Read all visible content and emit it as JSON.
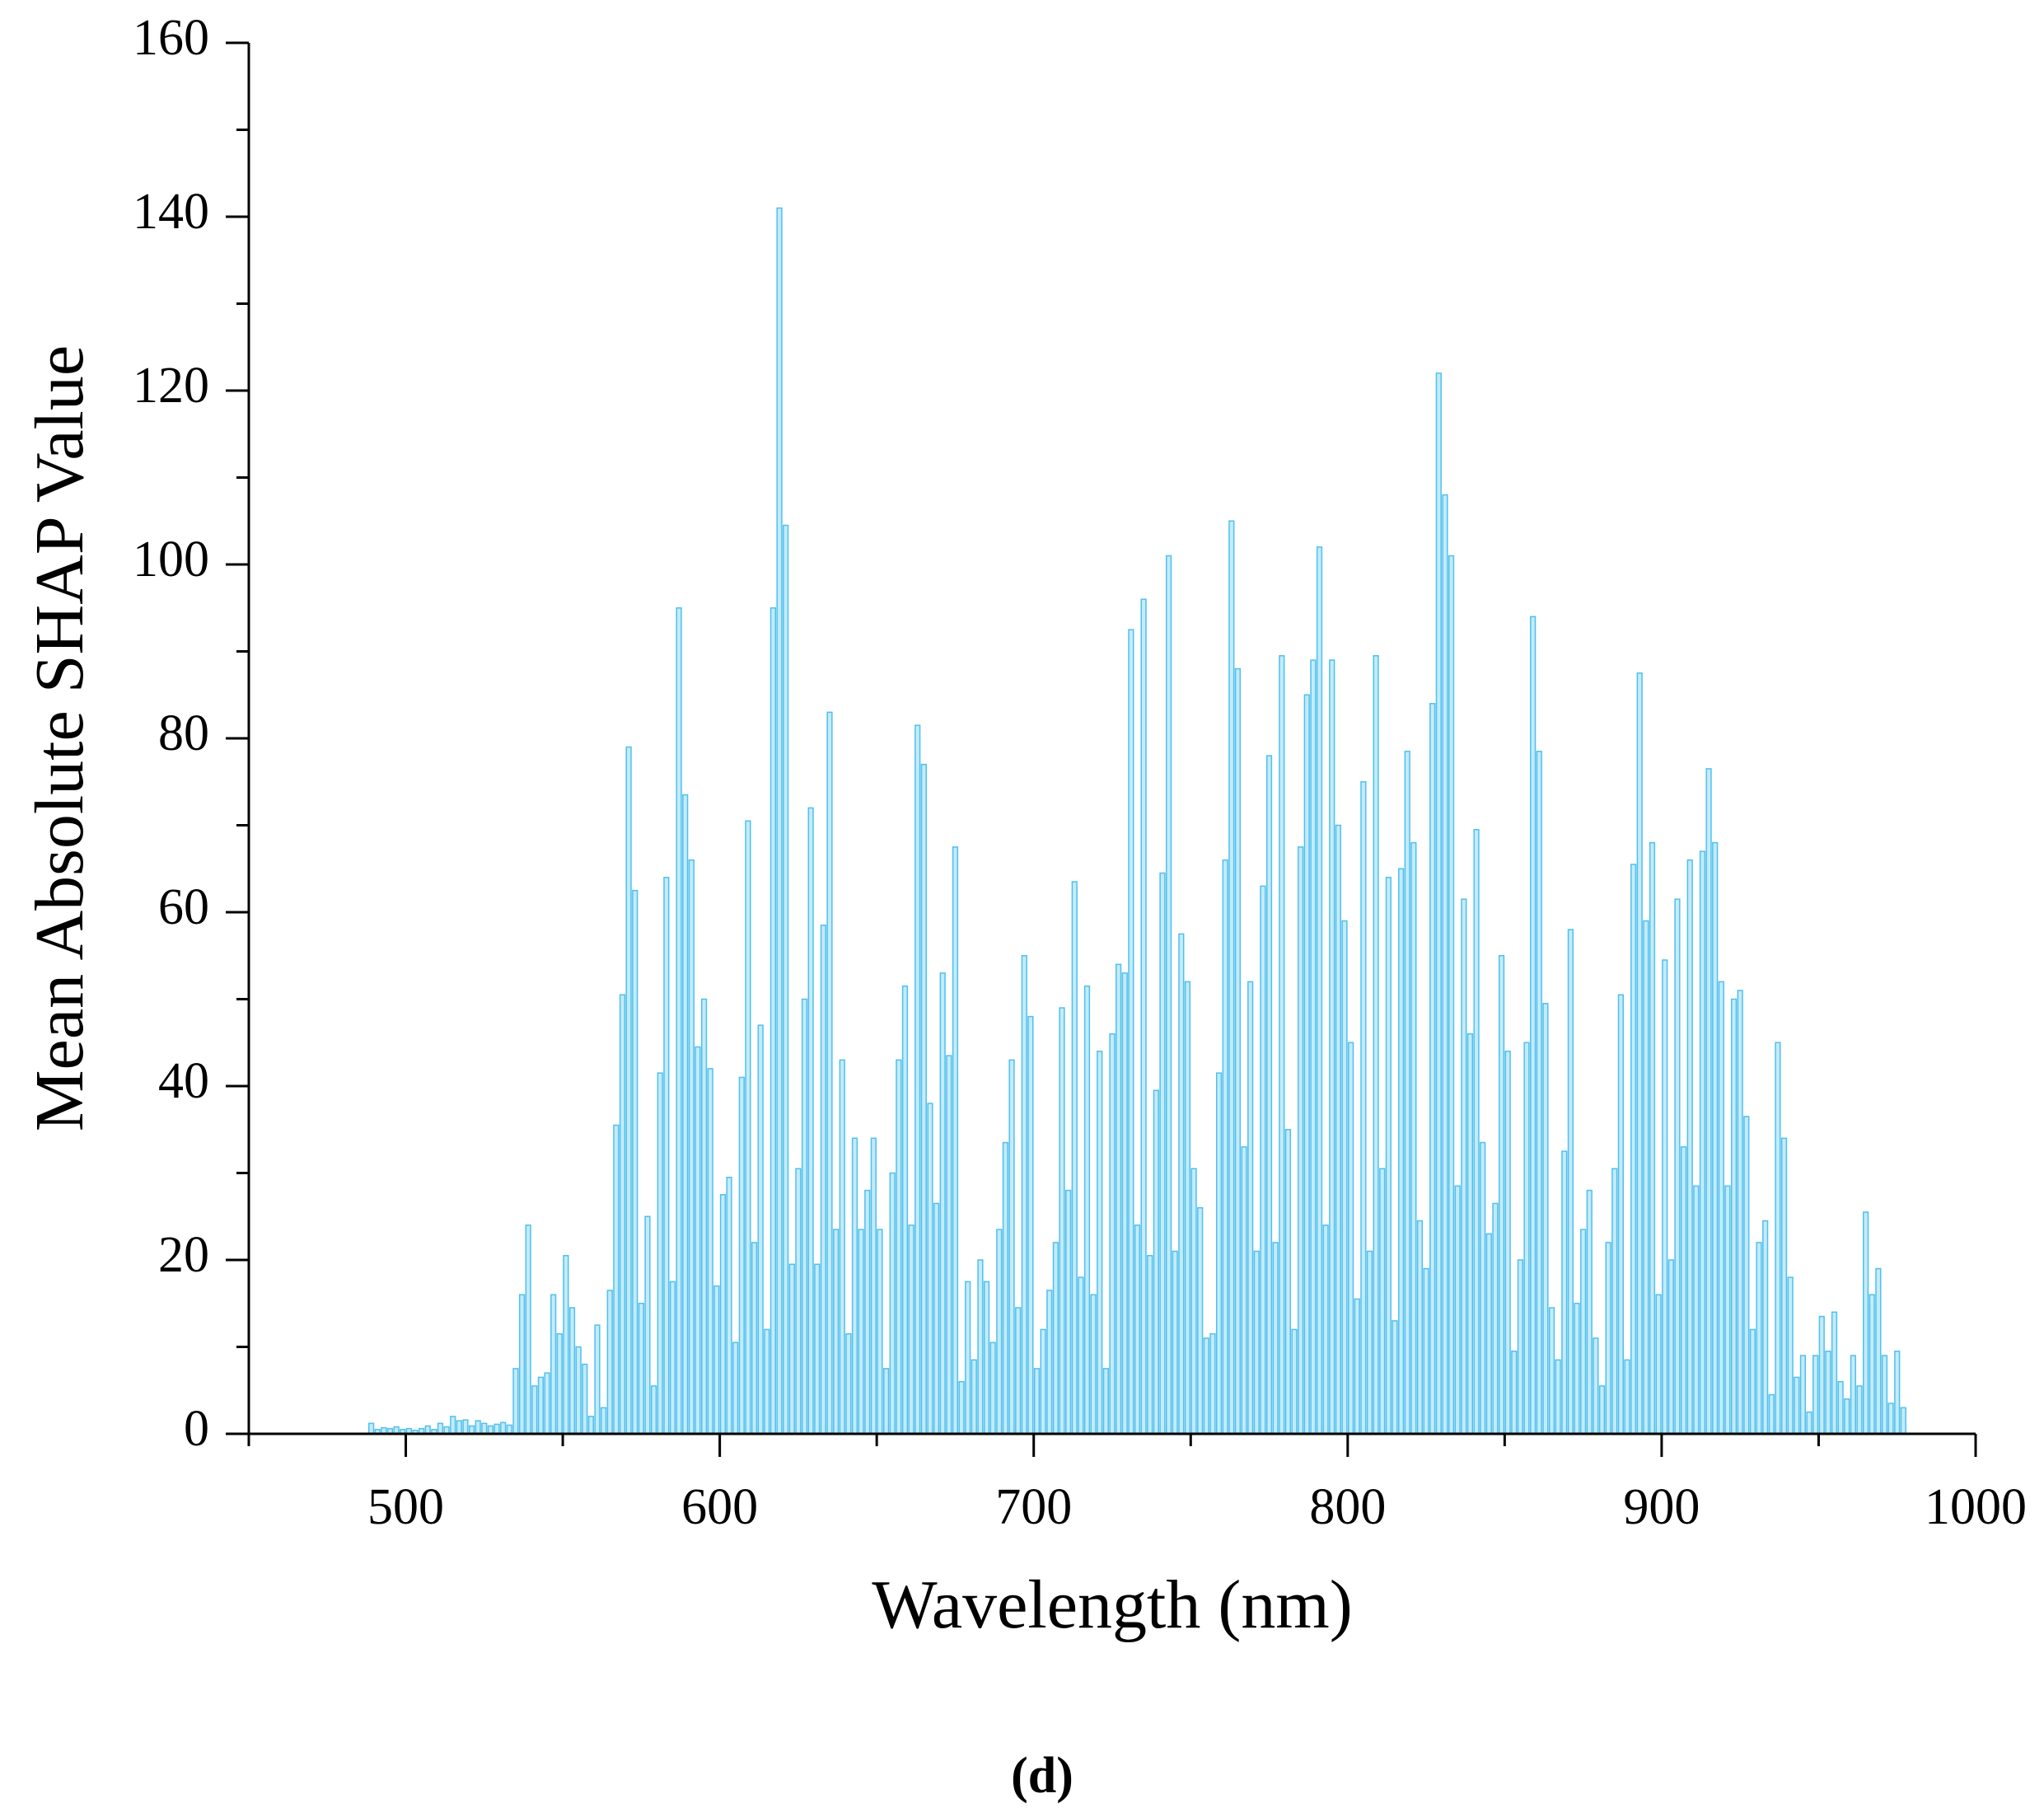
{
  "chart_data": {
    "type": "bar",
    "caption": "(d)",
    "xlabel": "Wavelength (nm)",
    "ylabel": "Mean Absolute SHAP Value",
    "color": "#c4ebfa",
    "edgecolor": "#4fc0ee",
    "xlim": [
      450,
      1000
    ],
    "xticks": [
      500,
      600,
      700,
      800,
      900,
      1000
    ],
    "ylim": [
      0,
      160
    ],
    "yticks": [
      0,
      20,
      40,
      60,
      80,
      100,
      120,
      140,
      160
    ],
    "x": [
      489,
      491,
      493,
      495,
      497,
      499,
      501,
      503,
      505,
      507,
      509,
      511,
      513,
      515,
      517,
      519,
      521,
      523,
      525,
      527,
      529,
      531,
      533,
      535,
      537,
      539,
      541,
      543,
      545,
      547,
      549,
      551,
      553,
      555,
      557,
      559,
      561,
      563,
      565,
      567,
      569,
      571,
      573,
      575,
      577,
      579,
      581,
      583,
      585,
      587,
      589,
      591,
      593,
      595,
      597,
      599,
      601,
      603,
      605,
      607,
      609,
      611,
      613,
      615,
      617,
      619,
      621,
      623,
      625,
      627,
      629,
      631,
      633,
      635,
      637,
      639,
      641,
      643,
      645,
      647,
      649,
      651,
      653,
      655,
      657,
      659,
      661,
      663,
      665,
      667,
      669,
      671,
      673,
      675,
      677,
      679,
      681,
      683,
      685,
      687,
      689,
      691,
      693,
      695,
      697,
      699,
      701,
      703,
      705,
      707,
      709,
      711,
      713,
      715,
      717,
      719,
      721,
      723,
      725,
      727,
      729,
      731,
      733,
      735,
      737,
      739,
      741,
      743,
      745,
      747,
      749,
      751,
      753,
      755,
      757,
      759,
      761,
      763,
      765,
      767,
      769,
      771,
      773,
      775,
      777,
      779,
      781,
      783,
      785,
      787,
      789,
      791,
      793,
      795,
      797,
      799,
      801,
      803,
      805,
      807,
      809,
      811,
      813,
      815,
      817,
      819,
      821,
      823,
      825,
      827,
      829,
      831,
      833,
      835,
      837,
      839,
      841,
      843,
      845,
      847,
      849,
      851,
      853,
      855,
      857,
      859,
      861,
      863,
      865,
      867,
      869,
      871,
      873,
      875,
      877,
      879,
      881,
      883,
      885,
      887,
      889,
      891,
      893,
      895,
      897,
      899,
      901,
      903,
      905,
      907,
      909,
      911,
      913,
      915,
      917,
      919,
      921,
      923,
      925,
      927,
      929,
      931,
      933,
      935,
      937,
      939,
      941,
      943,
      945,
      947,
      949,
      951,
      953,
      955,
      957,
      959,
      961,
      963,
      965,
      967,
      969,
      971,
      973,
      975,
      977
    ],
    "values": [
      1.2,
      0.5,
      0.7,
      0.6,
      0.8,
      0.5,
      0.6,
      0.4,
      0.6,
      0.9,
      0.5,
      1.2,
      0.8,
      2.0,
      1.5,
      1.6,
      0.9,
      1.5,
      1.2,
      0.9,
      1.1,
      1.3,
      1.0,
      7.5,
      16,
      24,
      5.5,
      6.5,
      7,
      16,
      11.5,
      20.5,
      14.5,
      10,
      8,
      2,
      12.5,
      3,
      16.5,
      35.5,
      50.5,
      79,
      62.5,
      15,
      25,
      5.5,
      41.5,
      64,
      17.5,
      95,
      73.5,
      66,
      44.5,
      50,
      42,
      17,
      27.5,
      29.5,
      10.5,
      41,
      70.5,
      22,
      47,
      12,
      95,
      141,
      104.5,
      19.5,
      30.5,
      50,
      72,
      19.5,
      58.5,
      83,
      23.5,
      43,
      11.5,
      34,
      23.5,
      28,
      34,
      23.5,
      7.5,
      30,
      43,
      51.5,
      24,
      81.5,
      77,
      38,
      26.5,
      53,
      43.5,
      67.5,
      6,
      17.5,
      8.5,
      20,
      17.5,
      10.5,
      23.5,
      33.5,
      43,
      14.5,
      55,
      48,
      7.5,
      12,
      16.5,
      22,
      49,
      28,
      63.5,
      18,
      51.5,
      16,
      44,
      7.5,
      46,
      54,
      53,
      92.5,
      24,
      96,
      20.5,
      39.5,
      64.5,
      101,
      21,
      57.5,
      52,
      30.5,
      26,
      11,
      11.5,
      41.5,
      66,
      105,
      88,
      33,
      52,
      21,
      63,
      78,
      22,
      89.5,
      35,
      12,
      67.5,
      85,
      89,
      102,
      24,
      89,
      70,
      59,
      45,
      15.5,
      75,
      21,
      89.5,
      30.5,
      64,
      13,
      65,
      78.5,
      68,
      24.5,
      19,
      84,
      122,
      108,
      101,
      28.5,
      61.5,
      46,
      69.5,
      33.5,
      23,
      26.5,
      55,
      44,
      9.5,
      20,
      45,
      94,
      78.5,
      49.5,
      14.5,
      8.5,
      32.5,
      58,
      15,
      23.5,
      28,
      11,
      5.5,
      22,
      30.5,
      50.5,
      8.5,
      65.5,
      87.5,
      59,
      68,
      16,
      54.5,
      20,
      61.5,
      33,
      66,
      28.5,
      67,
      76.5,
      68,
      52,
      28.5,
      50,
      51,
      36.5,
      12,
      22,
      24.5,
      4.5,
      45,
      34,
      18,
      6.5,
      9,
      2.5,
      9,
      13.5,
      9.5,
      14,
      6,
      4,
      9,
      5.5,
      25.5,
      16,
      19,
      9,
      3.5,
      9.5,
      3
    ]
  }
}
